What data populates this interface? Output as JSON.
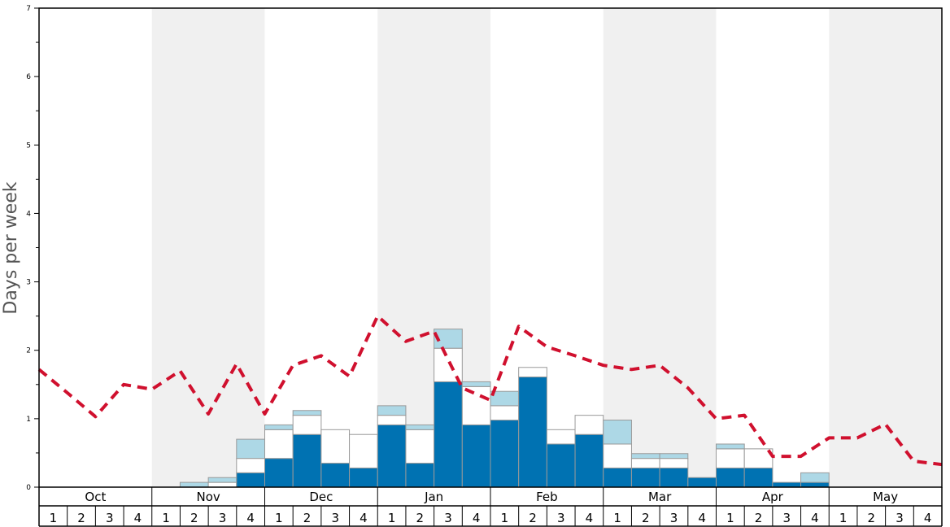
{
  "chart_data": {
    "type": "bar",
    "ylabel": "Days per week",
    "ylim": [
      0,
      7
    ],
    "yticks": [
      "0",
      "1",
      "2",
      "3",
      "4",
      "5",
      "6",
      "7"
    ],
    "months": [
      "Oct",
      "Nov",
      "Dec",
      "Jan",
      "Feb",
      "Mar",
      "Apr",
      "May"
    ],
    "week_labels": [
      "1",
      "2",
      "3",
      "4"
    ],
    "stacked": true,
    "series": [
      {
        "key": "dark",
        "color": "#0072b2",
        "values": [
          0,
          0,
          0,
          0,
          0,
          0,
          0,
          0.21,
          0.42,
          0.77,
          0.35,
          0.28,
          0.91,
          0.35,
          1.54,
          0.91,
          0.98,
          1.61,
          0.63,
          0.77,
          0.28,
          0.28,
          0.28,
          0.14,
          0.28,
          0.28,
          0.07,
          0.07,
          0,
          0,
          0,
          0
        ]
      },
      {
        "key": "white",
        "color": "#ffffff",
        "values": [
          0,
          0,
          0,
          0,
          0,
          0,
          0.07,
          0.21,
          0.42,
          0.28,
          0.49,
          0.49,
          0.14,
          0.49,
          0.49,
          0.56,
          0.21,
          0.14,
          0.21,
          0.28,
          0.35,
          0.14,
          0.14,
          0,
          0.28,
          0.28,
          0,
          0,
          0,
          0,
          0,
          0
        ]
      },
      {
        "key": "light",
        "color": "#add8e6",
        "values": [
          0,
          0,
          0,
          0,
          0,
          0.07,
          0.07,
          0.28,
          0.07,
          0.07,
          0,
          0,
          0.14,
          0.07,
          0.28,
          0.07,
          0.21,
          0,
          0,
          0,
          0.35,
          0.07,
          0.07,
          0,
          0.07,
          0,
          0,
          0.14,
          0,
          0,
          0,
          0
        ]
      }
    ],
    "line": {
      "color": "#d0102e",
      "style": "dashed",
      "values": [
        1.72,
        1.38,
        1.03,
        1.5,
        1.43,
        1.7,
        1.07,
        1.8,
        1.07,
        1.78,
        1.92,
        1.62,
        2.5,
        2.13,
        2.28,
        1.45,
        1.27,
        2.35,
        2.05,
        1.92,
        1.78,
        1.72,
        1.78,
        1.45,
        1.0,
        1.05,
        0.45,
        0.45,
        0.72,
        0.72,
        0.92,
        0.38,
        0.33
      ]
    },
    "shaded_months": [
      "Nov",
      "Jan",
      "Mar",
      "May"
    ],
    "grid": false
  }
}
